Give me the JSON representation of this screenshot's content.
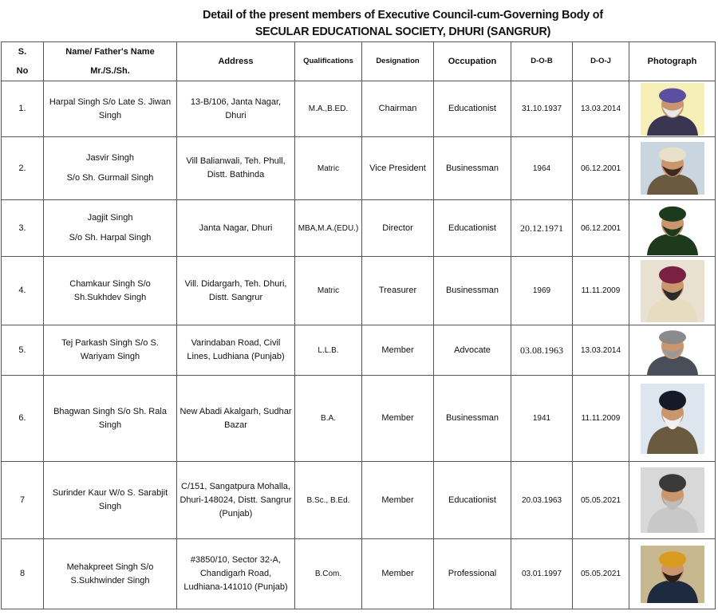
{
  "title_line1": "Detail of the present members of Executive Council-cum-Governing Body of",
  "title_line2": "SECULAR EDUCATIONAL SOCIETY, DHURI (SANGRUR)",
  "headers": {
    "sno_1": "S.",
    "sno_2": "No",
    "name_1": "Name/ Father's Name",
    "name_2": "Mr./S./Sh.",
    "address": "Address",
    "qualifications": "Qualifications",
    "designation": "Designation",
    "occupation": "Occupation",
    "dob": "D-O-B",
    "doj": "D-O-J",
    "photograph": "Photograph"
  },
  "rows": [
    {
      "sno": "1.",
      "name": "Harpal Singh S/o Late S. Jiwan Singh",
      "address": "13-B/106, Janta Nagar, Dhuri",
      "qual": "M.A.,B.ED.",
      "designation": "Chairman",
      "occupation": "Educationist",
      "dob": "31.10.1937",
      "doj": "13.03.2014"
    },
    {
      "sno": "2.",
      "name": "Jasvir Singh",
      "name2": "S/o Sh. Gurmail Singh",
      "address": "Vill Balianwali, Teh. Phull, Distt. Bathinda",
      "qual": "Matric",
      "designation": "Vice President",
      "occupation": "Businessman",
      "dob": "1964",
      "doj": "06.12.2001"
    },
    {
      "sno": "3.",
      "name": "Jagjit Singh",
      "name2": "S/o Sh. Harpal Singh",
      "address": "Janta Nagar, Dhuri",
      "qual": "MBA,M.A.(EDU.)",
      "designation": "Director",
      "occupation": "Educationist",
      "dob": "20.12.1971",
      "doj": "06.12.2001"
    },
    {
      "sno": "4.",
      "name": "Chamkaur Singh S/o Sh.Sukhdev Singh",
      "address": "Vill. Didargarh, Teh. Dhuri, Distt. Sangrur",
      "qual": "Matric",
      "designation": "Treasurer",
      "occupation": "Businessman",
      "dob": "1969",
      "doj": "11.11.2009"
    },
    {
      "sno": "5.",
      "name": "Tej Parkash Singh S/o S. Wariyam Singh",
      "address": "Varindaban Road, Civil Lines, Ludhiana (Punjab)",
      "qual": "L.L.B.",
      "designation": "Member",
      "occupation": "Advocate",
      "dob": "03.08.1963",
      "doj": "13.03.2014"
    },
    {
      "sno": "6.",
      "name": "Bhagwan Singh S/o Sh. Rala Singh",
      "address": "New Abadi Akalgarh, Sudhar Bazar",
      "qual": "B.A.",
      "designation": "Member",
      "occupation": "Businessman",
      "dob": "1941",
      "doj": "11.11.2009"
    },
    {
      "sno": "7",
      "name": "Surinder Kaur W/o S. Sarabjit Singh",
      "address": "C/151, Sangatpura Mohalla, Dhuri-148024, Distt. Sangrur (Punjab)",
      "qual": "B.Sc., B.Ed.",
      "designation": "Member",
      "occupation": "Educationist",
      "dob": "20.03.1963",
      "doj": "05.05.2021"
    },
    {
      "sno": "8",
      "name": "Mehakpreet Singh S/o S.Sukhwinder Singh",
      "address": "#3850/10,  Sector 32-A, Chandigarh Road, Ludhiana-141010 (Punjab)",
      "qual": "B.Com.",
      "designation": "Member",
      "occupation": "Professional",
      "dob": "03.01.1997",
      "doj": "05.05.2021"
    }
  ],
  "photo_colors": [
    {
      "bg": "#f6f0b8",
      "turban": "#5a4fa0",
      "coat": "#3a3550",
      "beard": "#e8e8e8"
    },
    {
      "bg": "#c9d6e0",
      "turban": "#e8e0c8",
      "coat": "#6a5a40",
      "beard": "#3a2a20"
    },
    {
      "bg": "#ffffff",
      "turban": "#1d3a1d",
      "coat": "#1d3a1d",
      "beard": "#1d3a1d"
    },
    {
      "bg": "#e8e0d0",
      "turban": "#7a2040",
      "coat": "#e8dcc0",
      "beard": "#2a2a2a"
    },
    {
      "bg": "#ffffff",
      "turban": "#8a8a8a",
      "coat": "#4a4e58",
      "beard": "#9a9a9a"
    },
    {
      "bg": "#dde6ee",
      "turban": "#151a28",
      "coat": "#6a5a40",
      "beard": "#f0f0f0"
    },
    {
      "bg": "#d8d8d8",
      "turban": "#3a3a3a",
      "coat": "#c8c8c8",
      "beard": "#bdbdbd"
    },
    {
      "bg": "#c8b890",
      "turban": "#d99a20",
      "coat": "#1e2a40",
      "beard": "#2a2018"
    }
  ]
}
